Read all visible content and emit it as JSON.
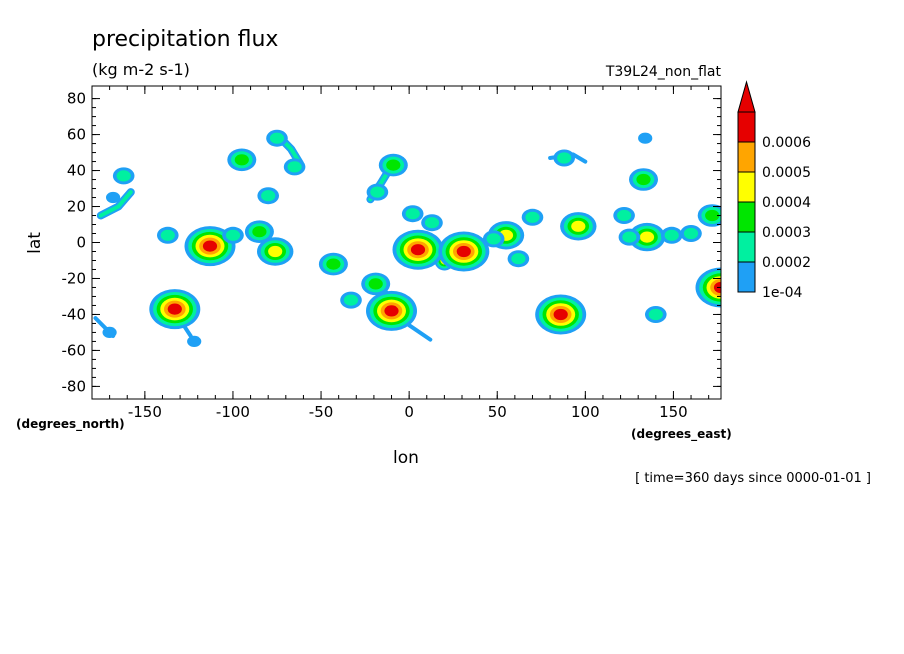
{
  "chart_data": {
    "type": "heatmap",
    "title": "precipitation flux",
    "units": "(kg m-2 s-1)",
    "case_label": "T39L24_non_flat",
    "xlabel": "lon",
    "ylabel": "lat",
    "x_units": "(degrees_east)",
    "y_units": "(degrees_north)",
    "time_label": "[ time=360 days since 0000-01-01 ]",
    "xlim": [
      -180,
      177
    ],
    "ylim": [
      -87,
      87
    ],
    "x_ticks": [
      -150,
      -100,
      -50,
      0,
      50,
      100,
      150
    ],
    "y_ticks": [
      -80,
      -60,
      -40,
      -20,
      0,
      20,
      40,
      60,
      80
    ],
    "colorbar": {
      "levels": [
        "1e-04",
        "0.0002",
        "0.0003",
        "0.0004",
        "0.0005",
        "0.0006"
      ],
      "colors": [
        "#1fa0f5",
        "#00f0a0",
        "#00e600",
        "#ffff00",
        "#ffa500",
        "#e60000"
      ],
      "extend": "max"
    },
    "cells": [
      {
        "lon": -133,
        "lat": -37,
        "level": 6
      },
      {
        "lon": -113,
        "lat": -2,
        "level": 6
      },
      {
        "lon": -10,
        "lat": -38,
        "level": 6
      },
      {
        "lon": 5,
        "lat": -4,
        "level": 6
      },
      {
        "lon": 31,
        "lat": -5,
        "level": 6
      },
      {
        "lon": 86,
        "lat": -40,
        "level": 6
      },
      {
        "lon": 177,
        "lat": -25,
        "level": 6
      },
      {
        "lon": -76,
        "lat": -5,
        "level": 4
      },
      {
        "lon": 55,
        "lat": 4,
        "level": 4
      },
      {
        "lon": 96,
        "lat": 9,
        "level": 4
      },
      {
        "lon": 135,
        "lat": 3,
        "level": 4
      },
      {
        "lon": -95,
        "lat": 46,
        "level": 3
      },
      {
        "lon": -9,
        "lat": 43,
        "level": 3
      },
      {
        "lon": 172,
        "lat": 15,
        "level": 3
      },
      {
        "lon": -85,
        "lat": 6,
        "level": 3
      },
      {
        "lon": -43,
        "lat": -12,
        "level": 3
      },
      {
        "lon": 133,
        "lat": 35,
        "level": 3
      },
      {
        "lon": -19,
        "lat": -23,
        "level": 3
      },
      {
        "lon": -162,
        "lat": 37,
        "level": 2
      },
      {
        "lon": -137,
        "lat": 4,
        "level": 2
      },
      {
        "lon": -75,
        "lat": 58,
        "level": 2
      },
      {
        "lon": -65,
        "lat": 42,
        "level": 2
      },
      {
        "lon": -18,
        "lat": 28,
        "level": 2
      },
      {
        "lon": -100,
        "lat": 4,
        "level": 2
      },
      {
        "lon": 2,
        "lat": 16,
        "level": 2
      },
      {
        "lon": 13,
        "lat": 11,
        "level": 2
      },
      {
        "lon": 48,
        "lat": 2,
        "level": 2
      },
      {
        "lon": 88,
        "lat": 47,
        "level": 2
      },
      {
        "lon": 122,
        "lat": 15,
        "level": 2
      },
      {
        "lon": 125,
        "lat": 3,
        "level": 2
      },
      {
        "lon": 160,
        "lat": 5,
        "level": 2
      },
      {
        "lon": 149,
        "lat": 4,
        "level": 2
      },
      {
        "lon": -33,
        "lat": -32,
        "level": 2
      },
      {
        "lon": 62,
        "lat": -9,
        "level": 2
      },
      {
        "lon": 140,
        "lat": -40,
        "level": 2
      },
      {
        "lon": 70,
        "lat": 14,
        "level": 2
      },
      {
        "lon": -80,
        "lat": 26,
        "level": 2
      },
      {
        "lon": -122,
        "lat": -55,
        "level": 1
      },
      {
        "lon": -170,
        "lat": -50,
        "level": 1
      },
      {
        "lon": 134,
        "lat": 58,
        "level": 1
      },
      {
        "lon": -168,
        "lat": 25,
        "level": 1
      }
    ],
    "streaks": [
      {
        "lon": [
          -175,
          -165,
          -158
        ],
        "lat": [
          15,
          20,
          28
        ],
        "level": 2
      },
      {
        "lon": [
          -72,
          -67,
          -62
        ],
        "lat": [
          57,
          52,
          44
        ],
        "level": 2
      },
      {
        "lon": [
          -22,
          -16,
          -11
        ],
        "lat": [
          24,
          33,
          41
        ],
        "level": 2
      },
      {
        "lon": [
          -10,
          0,
          12
        ],
        "lat": [
          -38,
          -46,
          -54
        ],
        "level": 1
      },
      {
        "lon": [
          -20,
          -14,
          -11
        ],
        "lat": [
          -22,
          -30,
          -38
        ],
        "level": 3
      },
      {
        "lon": [
          80,
          93,
          100
        ],
        "lat": [
          47,
          49,
          45
        ],
        "level": 1
      },
      {
        "lon": [
          -178,
          -172,
          -168
        ],
        "lat": [
          -42,
          -48,
          -52
        ],
        "level": 1
      },
      {
        "lon": [
          -130,
          -128,
          -124
        ],
        "lat": [
          -38,
          -46,
          -52
        ],
        "level": 1
      },
      {
        "lon": [
          20,
          27,
          33
        ],
        "lat": [
          -10,
          -6,
          -2
        ],
        "level": 5
      }
    ]
  }
}
